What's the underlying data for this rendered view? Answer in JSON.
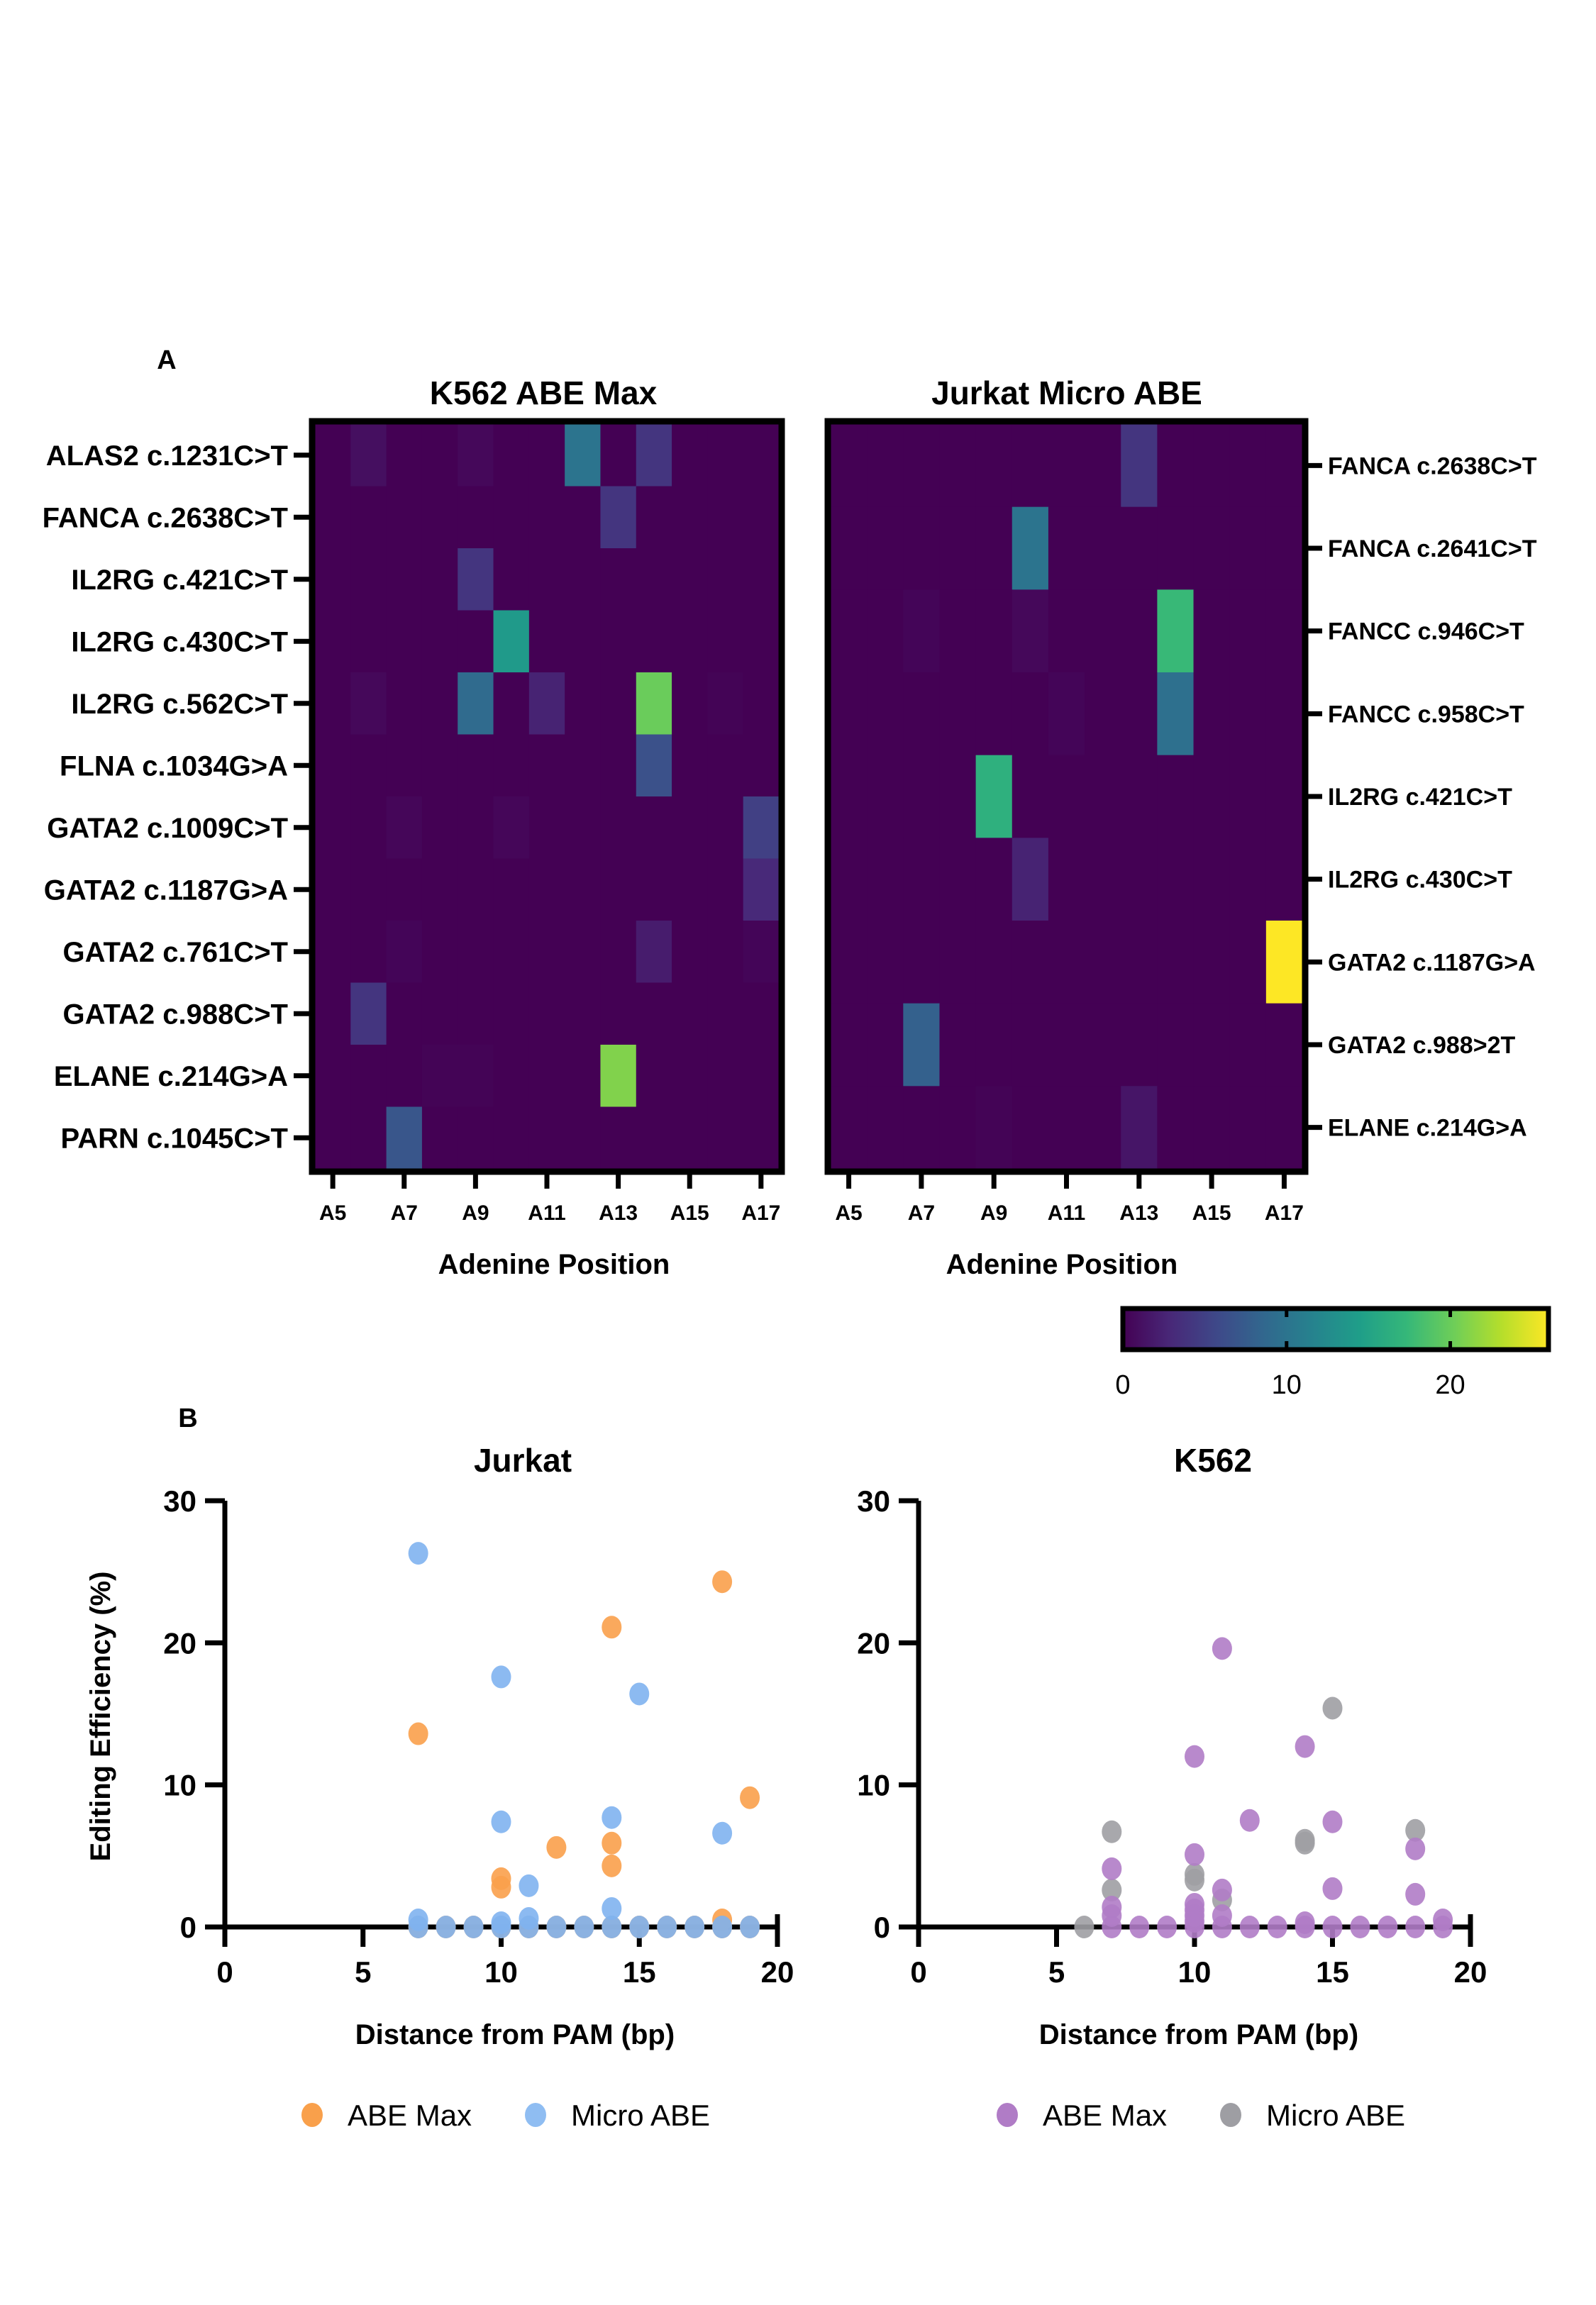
{
  "panels": {
    "a_label": "A",
    "b_label": "B"
  },
  "colorscale": {
    "name": "viridis",
    "stops": [
      "#440154",
      "#482878",
      "#3e4989",
      "#31688e",
      "#26828e",
      "#1f9e89",
      "#35b779",
      "#6ece58",
      "#b5de2b",
      "#fde725"
    ],
    "min": 0,
    "max": 26,
    "ticks": [
      0,
      10,
      20
    ],
    "tick_labels": [
      "0",
      "10",
      "20"
    ]
  },
  "chart_data": [
    {
      "type": "heatmap",
      "id": "heatmap-k562",
      "title": "K562 ABE Max",
      "xlabel": "Adenine Position",
      "ylabel": "",
      "y_axis_side": "left",
      "columns": [
        "A5",
        "A6",
        "A7",
        "A8",
        "A9",
        "A10",
        "A11",
        "A12",
        "A13",
        "A14",
        "A15",
        "A16",
        "A17"
      ],
      "x_tick_labels": [
        "A5",
        "A7",
        "A9",
        "A11",
        "A13",
        "A15",
        "A17"
      ],
      "rows": [
        "ALAS2 c.1231C>T",
        "FANCA c.2638C>T",
        "IL2RG c.421C>T",
        "IL2RG c.430C>T",
        "IL2RG c.562C>T",
        "FLNA c.1034G>A",
        "GATA2 c.1009C>T",
        "GATA2 c.1187G>A",
        "GATA2 c.761C>T",
        "GATA2 c.988C>T",
        "ELANE c.214G>A",
        "PARN c.1045C>T"
      ],
      "values": [
        [
          0,
          1.0,
          0,
          0,
          0.5,
          0,
          0,
          10.0,
          0,
          4.0,
          0,
          0,
          0
        ],
        [
          0,
          0,
          0,
          0,
          0,
          0,
          0,
          0,
          4.0,
          0,
          0,
          0,
          0
        ],
        [
          0,
          0,
          0,
          0,
          4.0,
          0,
          0,
          0,
          0,
          0,
          0,
          0,
          0
        ],
        [
          0,
          0,
          0,
          0,
          0,
          14.0,
          0,
          0,
          0,
          0,
          0,
          0,
          0
        ],
        [
          0,
          0.5,
          0,
          0,
          9.0,
          0,
          2.5,
          0,
          0,
          20.0,
          0,
          0.2,
          0
        ],
        [
          0,
          0,
          0,
          0,
          0,
          0,
          0,
          0,
          0,
          6.5,
          0,
          0,
          0
        ],
        [
          0,
          0,
          0.4,
          0,
          0,
          0.4,
          0,
          0,
          0,
          0,
          0,
          0,
          5.0
        ],
        [
          0,
          0,
          0,
          0,
          0,
          0,
          0,
          0,
          0,
          0,
          0,
          0,
          3.0
        ],
        [
          0,
          0,
          0.3,
          0,
          0,
          0,
          0,
          0,
          0,
          2.0,
          0,
          0,
          0.3
        ],
        [
          0,
          4.0,
          0,
          0,
          0,
          0,
          0,
          0,
          0,
          0,
          0,
          0,
          0
        ],
        [
          0,
          0,
          0,
          0.2,
          0.2,
          0,
          0,
          0,
          21.0,
          0,
          0,
          0,
          0
        ],
        [
          0,
          0,
          7.0,
          0,
          0,
          0,
          0,
          0,
          0,
          0,
          0,
          0,
          0
        ]
      ]
    },
    {
      "type": "heatmap",
      "id": "heatmap-jurkat",
      "title": "Jurkat Micro ABE",
      "xlabel": "Adenine Position",
      "ylabel": "",
      "y_axis_side": "right",
      "columns": [
        "A5",
        "A6",
        "A7",
        "A8",
        "A9",
        "A10",
        "A11",
        "A12",
        "A13",
        "A14",
        "A15",
        "A16",
        "A17"
      ],
      "x_tick_labels": [
        "A5",
        "A7",
        "A9",
        "A11",
        "A13",
        "A15",
        "A17"
      ],
      "rows": [
        "FANCA c.2638C>T",
        "FANCA c.2641C>T",
        "FANCC c.946C>T",
        "FANCC c.958C>T",
        "IL2RG c.421C>T",
        "IL2RG c.430C>T",
        "GATA2 c.1187G>A",
        "GATA2 c.988>2T",
        "ELANE c.214G>A"
      ],
      "values": [
        [
          0,
          0,
          0,
          0,
          0,
          0,
          0,
          0,
          4.0,
          0,
          0,
          0,
          0
        ],
        [
          0,
          0,
          0,
          0,
          0,
          10.0,
          0,
          0,
          0,
          0,
          0,
          0,
          0
        ],
        [
          0,
          0,
          0.3,
          0,
          0,
          0.5,
          0,
          0,
          0,
          17.5,
          0,
          0,
          0
        ],
        [
          0,
          0,
          0,
          0,
          0,
          0,
          0.3,
          0,
          0,
          9.5,
          0,
          0,
          0
        ],
        [
          0,
          0,
          0,
          0,
          16.5,
          0,
          0,
          0,
          0,
          0,
          0,
          0,
          0
        ],
        [
          0,
          0,
          0,
          0,
          0,
          2.5,
          0,
          0,
          0,
          0,
          0,
          0,
          0
        ],
        [
          0,
          0,
          0,
          0,
          0,
          0,
          0,
          0,
          0,
          0,
          0,
          0,
          26.0
        ],
        [
          0,
          0,
          8.0,
          0,
          0,
          0,
          0,
          0,
          0,
          0,
          0,
          0,
          0
        ],
        [
          0,
          0,
          0,
          0,
          0.2,
          0,
          0,
          0,
          1.5,
          0,
          0,
          0,
          0
        ]
      ]
    },
    {
      "type": "scatter",
      "id": "scatter-jurkat",
      "title": "Jurkat",
      "xlabel": "Distance from PAM (bp)",
      "ylabel": "Editing Efficiency (%)",
      "xlim": [
        0,
        20
      ],
      "ylim": [
        0,
        30
      ],
      "x_ticks": [
        0,
        5,
        10,
        15,
        20
      ],
      "y_ticks": [
        0,
        10,
        20,
        30
      ],
      "grid": false,
      "legend": "bottom",
      "series": [
        {
          "name": "ABE Max",
          "color": "#f9a04b",
          "points": [
            [
              7,
              13.6
            ],
            [
              10,
              3.4
            ],
            [
              10,
              2.8
            ],
            [
              12,
              5.6
            ],
            [
              14,
              21.1
            ],
            [
              14,
              5.9
            ],
            [
              14,
              4.3
            ],
            [
              18,
              24.3
            ],
            [
              18,
              0.5
            ],
            [
              19,
              9.1
            ],
            [
              7,
              0
            ],
            [
              8,
              0
            ],
            [
              9,
              0
            ],
            [
              10,
              0
            ],
            [
              11,
              0
            ],
            [
              12,
              0
            ],
            [
              13,
              0
            ],
            [
              14,
              0
            ],
            [
              15,
              0
            ],
            [
              16,
              0
            ],
            [
              17,
              0
            ],
            [
              18,
              0
            ],
            [
              19,
              0
            ]
          ]
        },
        {
          "name": "Micro ABE",
          "color": "#7fb3ef",
          "points": [
            [
              7,
              26.3
            ],
            [
              7,
              0.5
            ],
            [
              10,
              17.6
            ],
            [
              10,
              7.4
            ],
            [
              10,
              0.3
            ],
            [
              11,
              2.9
            ],
            [
              11,
              0.6
            ],
            [
              14,
              7.7
            ],
            [
              14,
              1.3
            ],
            [
              15,
              16.4
            ],
            [
              18,
              6.6
            ],
            [
              7,
              0
            ],
            [
              8,
              0
            ],
            [
              9,
              0
            ],
            [
              10,
              0
            ],
            [
              11,
              0
            ],
            [
              12,
              0
            ],
            [
              13,
              0
            ],
            [
              14,
              0
            ],
            [
              15,
              0
            ],
            [
              16,
              0
            ],
            [
              17,
              0
            ],
            [
              18,
              0
            ],
            [
              19,
              0
            ]
          ]
        }
      ]
    },
    {
      "type": "scatter",
      "id": "scatter-k562",
      "title": "K562",
      "xlabel": "Distance from PAM (bp)",
      "ylabel": "",
      "xlim": [
        0,
        20
      ],
      "ylim": [
        0,
        30
      ],
      "x_ticks": [
        0,
        5,
        10,
        15,
        20
      ],
      "y_ticks": [
        0,
        10,
        20,
        30
      ],
      "grid": false,
      "legend": "bottom",
      "series": [
        {
          "name": "Micro ABE",
          "color": "#9e9ea3",
          "points": [
            [
              6,
              0
            ],
            [
              7,
              6.7
            ],
            [
              7,
              2.6
            ],
            [
              10,
              3.7
            ],
            [
              10,
              3.3
            ],
            [
              11,
              1.9
            ],
            [
              14,
              6.1
            ],
            [
              14,
              5.9
            ],
            [
              15,
              15.4
            ],
            [
              18,
              6.8
            ]
          ]
        },
        {
          "name": "ABE Max",
          "color": "#b07cc6",
          "points": [
            [
              7,
              4.1
            ],
            [
              7,
              1.4
            ],
            [
              7,
              0.8
            ],
            [
              10,
              12.0
            ],
            [
              10,
              5.1
            ],
            [
              10,
              1.6
            ],
            [
              10,
              1.2
            ],
            [
              10,
              0.8
            ],
            [
              10,
              0.4
            ],
            [
              11,
              19.6
            ],
            [
              11,
              2.6
            ],
            [
              11,
              0.8
            ],
            [
              12,
              7.5
            ],
            [
              14,
              12.7
            ],
            [
              14,
              0.3
            ],
            [
              15,
              7.4
            ],
            [
              15,
              2.7
            ],
            [
              18,
              5.5
            ],
            [
              18,
              2.3
            ],
            [
              19,
              0.5
            ],
            [
              7,
              0
            ],
            [
              8,
              0
            ],
            [
              9,
              0
            ],
            [
              10,
              0
            ],
            [
              11,
              0
            ],
            [
              12,
              0
            ],
            [
              13,
              0
            ],
            [
              14,
              0
            ],
            [
              15,
              0
            ],
            [
              16,
              0
            ],
            [
              17,
              0
            ],
            [
              18,
              0
            ],
            [
              19,
              0
            ]
          ]
        }
      ]
    }
  ],
  "legends": {
    "jurkat": [
      {
        "label": "ABE Max",
        "color": "#f9a04b"
      },
      {
        "label": "Micro ABE",
        "color": "#8fbdf2"
      }
    ],
    "k562": [
      {
        "label": "ABE Max",
        "color": "#b07cc6"
      },
      {
        "label": "Micro ABE",
        "color": "#9e9ea3"
      }
    ]
  }
}
